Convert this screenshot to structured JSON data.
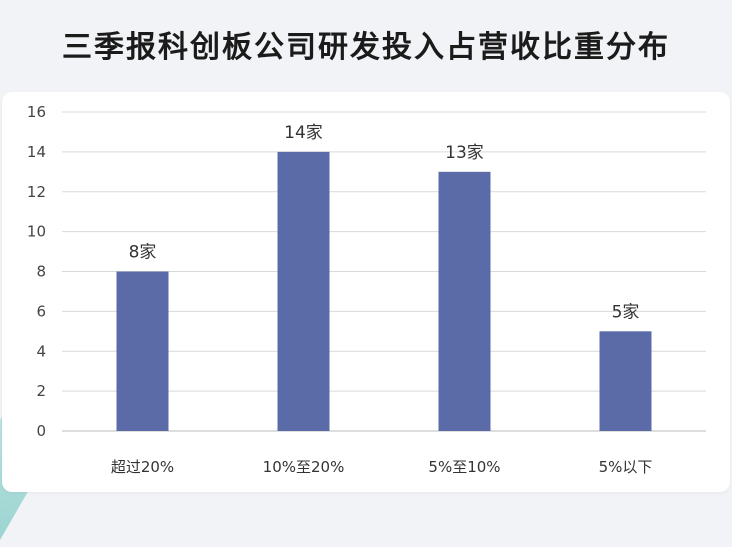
{
  "chart_data": {
    "type": "bar",
    "title": "三季报科创板公司研发投入占营收比重分布",
    "categories": [
      "超过20%",
      "10%至20%",
      "5%至10%",
      "5%以下"
    ],
    "values": [
      8,
      14,
      13,
      5
    ],
    "data_labels": [
      "8家",
      "14家",
      "13家",
      "5家"
    ],
    "yticks": [
      "0",
      "2",
      "4",
      "6",
      "8",
      "10",
      "12",
      "14",
      "16"
    ],
    "ylim": [
      0,
      16
    ],
    "grid": true,
    "bar_color": "#5a6ba8",
    "xlabel": "",
    "ylabel": ""
  }
}
